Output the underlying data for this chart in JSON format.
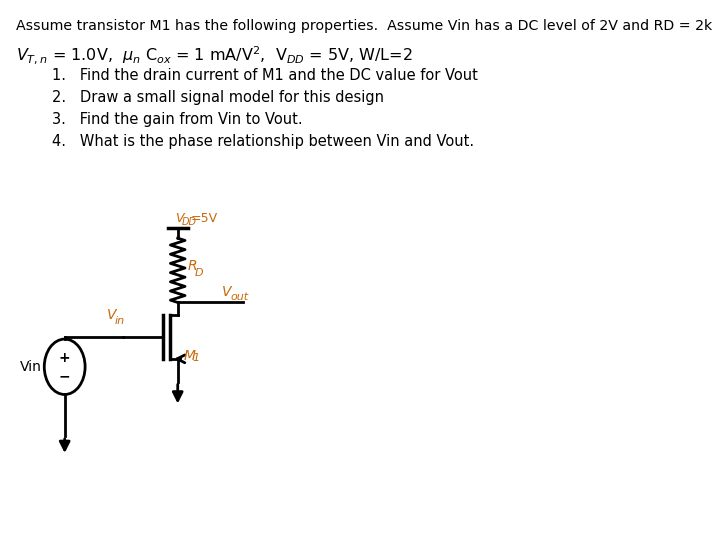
{
  "bg_color": "#ffffff",
  "text_color": "#000000",
  "orange_color": "#c8690a",
  "line1": "Assume transistor M1 has the following properties.  Assume Vin has a DC level of 2V and RD = 2k",
  "line2_plain": "VT,n = 1.0V,  μn Cox = 1 mA/V²,  VDD = 5V, W/L=2",
  "items": [
    "Find the drain current of M1 and the DC value for Vout",
    "Draw a small signal model for this design",
    "Find the gain from Vin to Vout.",
    "What is the phase relationship between Vin and Vout."
  ],
  "circuit": {
    "vdd_label": "VDD=5V",
    "rd_label": "RD",
    "vout_label": "Vout",
    "vin_node_label": "Vin",
    "vin_src_label": "Vin",
    "m1_label": "M1"
  },
  "lw": 2.0,
  "font_size_body": 10.5
}
